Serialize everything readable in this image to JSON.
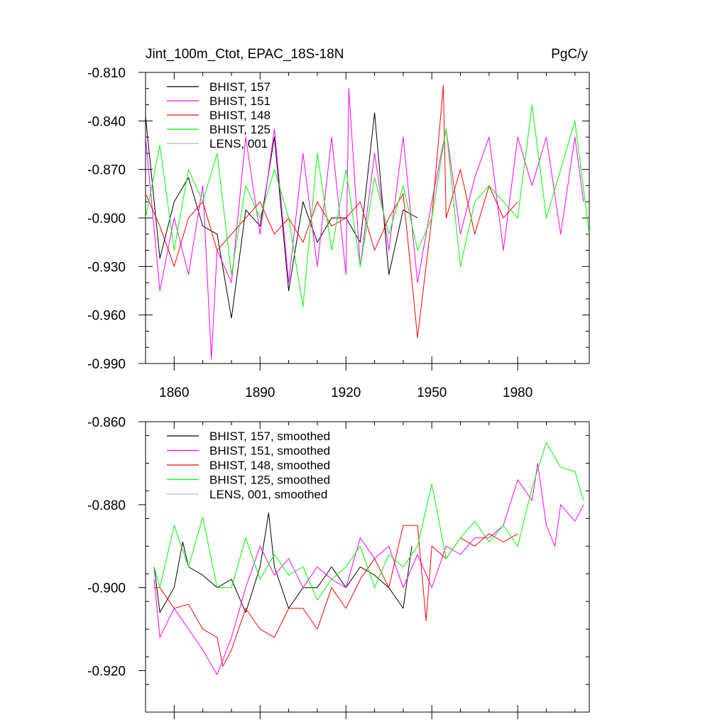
{
  "chart_data": [
    {
      "type": "line",
      "title": "Jint_100m_Ctot, EPAC_18S-18N",
      "units": "PgC/y",
      "xlim": [
        1850,
        2005
      ],
      "ylim": [
        -0.99,
        -0.81
      ],
      "x_ticks": [
        1860,
        1890,
        1920,
        1950,
        1980
      ],
      "y_ticks": [
        -0.81,
        -0.84,
        -0.87,
        -0.9,
        -0.93,
        -0.96,
        -0.99
      ],
      "y_tick_labels": [
        "-0.810",
        "-0.840",
        "-0.870",
        "-0.900",
        "-0.930",
        "-0.960",
        "-0.990"
      ],
      "legend_position": "top-left",
      "series": [
        {
          "name": "BHIST, 157",
          "color": "#000000",
          "x": [
            1850,
            1855,
            1860,
            1865,
            1870,
            1875,
            1880,
            1885,
            1890,
            1895,
            1900,
            1905,
            1910,
            1915,
            1920,
            1925,
            1930,
            1935,
            1940,
            1945
          ],
          "y": [
            -0.837,
            -0.925,
            -0.89,
            -0.875,
            -0.905,
            -0.91,
            -0.962,
            -0.895,
            -0.905,
            -0.85,
            -0.945,
            -0.89,
            -0.915,
            -0.9,
            -0.9,
            -0.915,
            -0.835,
            -0.935,
            -0.895,
            -0.9
          ]
        },
        {
          "name": "BHIST, 151",
          "color": "#ff00ff",
          "x": [
            1850,
            1855,
            1860,
            1865,
            1870,
            1873,
            1875,
            1880,
            1885,
            1890,
            1895,
            1900,
            1905,
            1910,
            1915,
            1920,
            1921,
            1925,
            1930,
            1935,
            1940,
            1945,
            1950,
            1955,
            1960,
            1965,
            1970,
            1975,
            1980,
            1985,
            1990,
            1995,
            2000,
            2003
          ],
          "y": [
            -0.85,
            -0.945,
            -0.9,
            -0.935,
            -0.88,
            -0.987,
            -0.92,
            -0.94,
            -0.85,
            -0.91,
            -0.845,
            -0.94,
            -0.86,
            -0.93,
            -0.85,
            -0.935,
            -0.82,
            -0.93,
            -0.86,
            -0.92,
            -0.85,
            -0.94,
            -0.89,
            -0.845,
            -0.91,
            -0.875,
            -0.85,
            -0.92,
            -0.85,
            -0.88,
            -0.85,
            -0.91,
            -0.85,
            -0.89
          ]
        },
        {
          "name": "BHIST, 148",
          "color": "#ff0000",
          "x": [
            1850,
            1855,
            1860,
            1865,
            1870,
            1875,
            1880,
            1885,
            1890,
            1895,
            1900,
            1905,
            1910,
            1915,
            1920,
            1925,
            1930,
            1935,
            1940,
            1945,
            1950,
            1954,
            1955,
            1960,
            1965,
            1970,
            1975,
            1980
          ],
          "y": [
            -0.885,
            -0.905,
            -0.93,
            -0.9,
            -0.89,
            -0.92,
            -0.91,
            -0.9,
            -0.89,
            -0.91,
            -0.9,
            -0.915,
            -0.89,
            -0.905,
            -0.9,
            -0.89,
            -0.92,
            -0.9,
            -0.885,
            -0.974,
            -0.9,
            -0.818,
            -0.9,
            -0.87,
            -0.91,
            -0.88,
            -0.9,
            -0.89
          ]
        },
        {
          "name": "BHIST, 125",
          "color": "#00ff00",
          "x": [
            1850,
            1855,
            1860,
            1865,
            1870,
            1875,
            1880,
            1885,
            1890,
            1895,
            1900,
            1905,
            1910,
            1915,
            1920,
            1925,
            1930,
            1935,
            1940,
            1945,
            1950,
            1955,
            1960,
            1965,
            1970,
            1975,
            1980,
            1985,
            1990,
            1995,
            2000,
            2005
          ],
          "y": [
            -0.9,
            -0.855,
            -0.92,
            -0.87,
            -0.89,
            -0.86,
            -0.935,
            -0.88,
            -0.9,
            -0.87,
            -0.9,
            -0.955,
            -0.86,
            -0.92,
            -0.87,
            -0.93,
            -0.875,
            -0.91,
            -0.88,
            -0.92,
            -0.9,
            -0.845,
            -0.93,
            -0.89,
            -0.88,
            -0.89,
            -0.9,
            -0.83,
            -0.9,
            -0.87,
            -0.84,
            -0.91
          ]
        },
        {
          "name": "LENS, 001",
          "color": "#bbbbbb",
          "x": [],
          "y": []
        }
      ]
    },
    {
      "type": "line",
      "title": "",
      "xlim": [
        1850,
        2005
      ],
      "ylim": [
        -0.93,
        -0.86
      ],
      "x_ticks": [
        1860,
        1890,
        1920,
        1950,
        1980
      ],
      "y_ticks": [
        -0.86,
        -0.88,
        -0.9,
        -0.92
      ],
      "y_tick_labels": [
        "-0.860",
        "-0.880",
        "-0.900",
        "-0.920"
      ],
      "legend_position": "top-left",
      "series": [
        {
          "name": "BHIST, 157, smoothed",
          "color": "#000000",
          "x": [
            1853,
            1855,
            1860,
            1863,
            1865,
            1870,
            1875,
            1880,
            1885,
            1890,
            1893,
            1895,
            1900,
            1905,
            1910,
            1915,
            1920,
            1925,
            1930,
            1935,
            1940,
            1943
          ],
          "y": [
            -0.895,
            -0.906,
            -0.9,
            -0.889,
            -0.895,
            -0.897,
            -0.9,
            -0.898,
            -0.906,
            -0.895,
            -0.882,
            -0.895,
            -0.905,
            -0.9,
            -0.9,
            -0.895,
            -0.9,
            -0.895,
            -0.897,
            -0.9,
            -0.905,
            -0.89
          ]
        },
        {
          "name": "BHIST, 151, smoothed",
          "color": "#ff00ff",
          "x": [
            1853,
            1855,
            1860,
            1865,
            1870,
            1875,
            1880,
            1885,
            1890,
            1895,
            1900,
            1905,
            1910,
            1915,
            1920,
            1925,
            1930,
            1935,
            1940,
            1945,
            1950,
            1955,
            1960,
            1965,
            1970,
            1975,
            1980,
            1985,
            1987,
            1990,
            1993,
            1995,
            2000,
            2003
          ],
          "y": [
            -0.898,
            -0.912,
            -0.905,
            -0.91,
            -0.915,
            -0.921,
            -0.912,
            -0.9,
            -0.89,
            -0.897,
            -0.893,
            -0.9,
            -0.895,
            -0.898,
            -0.9,
            -0.888,
            -0.893,
            -0.89,
            -0.9,
            -0.892,
            -0.9,
            -0.89,
            -0.892,
            -0.888,
            -0.888,
            -0.885,
            -0.874,
            -0.879,
            -0.87,
            -0.885,
            -0.89,
            -0.88,
            -0.884,
            -0.88
          ]
        },
        {
          "name": "BHIST, 148, smoothed",
          "color": "#ff0000",
          "x": [
            1853,
            1855,
            1860,
            1865,
            1870,
            1875,
            1877,
            1880,
            1885,
            1890,
            1895,
            1900,
            1905,
            1910,
            1915,
            1920,
            1925,
            1930,
            1935,
            1940,
            1945,
            1948,
            1950,
            1955,
            1960,
            1965,
            1970,
            1975,
            1980
          ],
          "y": [
            -0.9,
            -0.9,
            -0.905,
            -0.904,
            -0.91,
            -0.912,
            -0.919,
            -0.915,
            -0.905,
            -0.91,
            -0.912,
            -0.905,
            -0.905,
            -0.91,
            -0.9,
            -0.905,
            -0.898,
            -0.893,
            -0.9,
            -0.885,
            -0.885,
            -0.908,
            -0.89,
            -0.893,
            -0.888,
            -0.89,
            -0.887,
            -0.889,
            -0.887
          ]
        },
        {
          "name": "BHIST, 125, smoothed",
          "color": "#00ff00",
          "x": [
            1853,
            1855,
            1860,
            1865,
            1870,
            1875,
            1880,
            1885,
            1890,
            1895,
            1900,
            1905,
            1910,
            1915,
            1920,
            1925,
            1930,
            1935,
            1940,
            1945,
            1950,
            1955,
            1960,
            1965,
            1970,
            1975,
            1980,
            1985,
            1990,
            1995,
            2000,
            2003
          ],
          "y": [
            -0.895,
            -0.9,
            -0.885,
            -0.895,
            -0.883,
            -0.9,
            -0.9,
            -0.888,
            -0.898,
            -0.892,
            -0.897,
            -0.895,
            -0.903,
            -0.898,
            -0.895,
            -0.89,
            -0.9,
            -0.892,
            -0.895,
            -0.89,
            -0.875,
            -0.893,
            -0.888,
            -0.884,
            -0.889,
            -0.885,
            -0.89,
            -0.876,
            -0.865,
            -0.871,
            -0.872,
            -0.879
          ]
        },
        {
          "name": "LENS, 001, smoothed",
          "color": "#bbbbbb",
          "x": [],
          "y": []
        }
      ]
    }
  ]
}
